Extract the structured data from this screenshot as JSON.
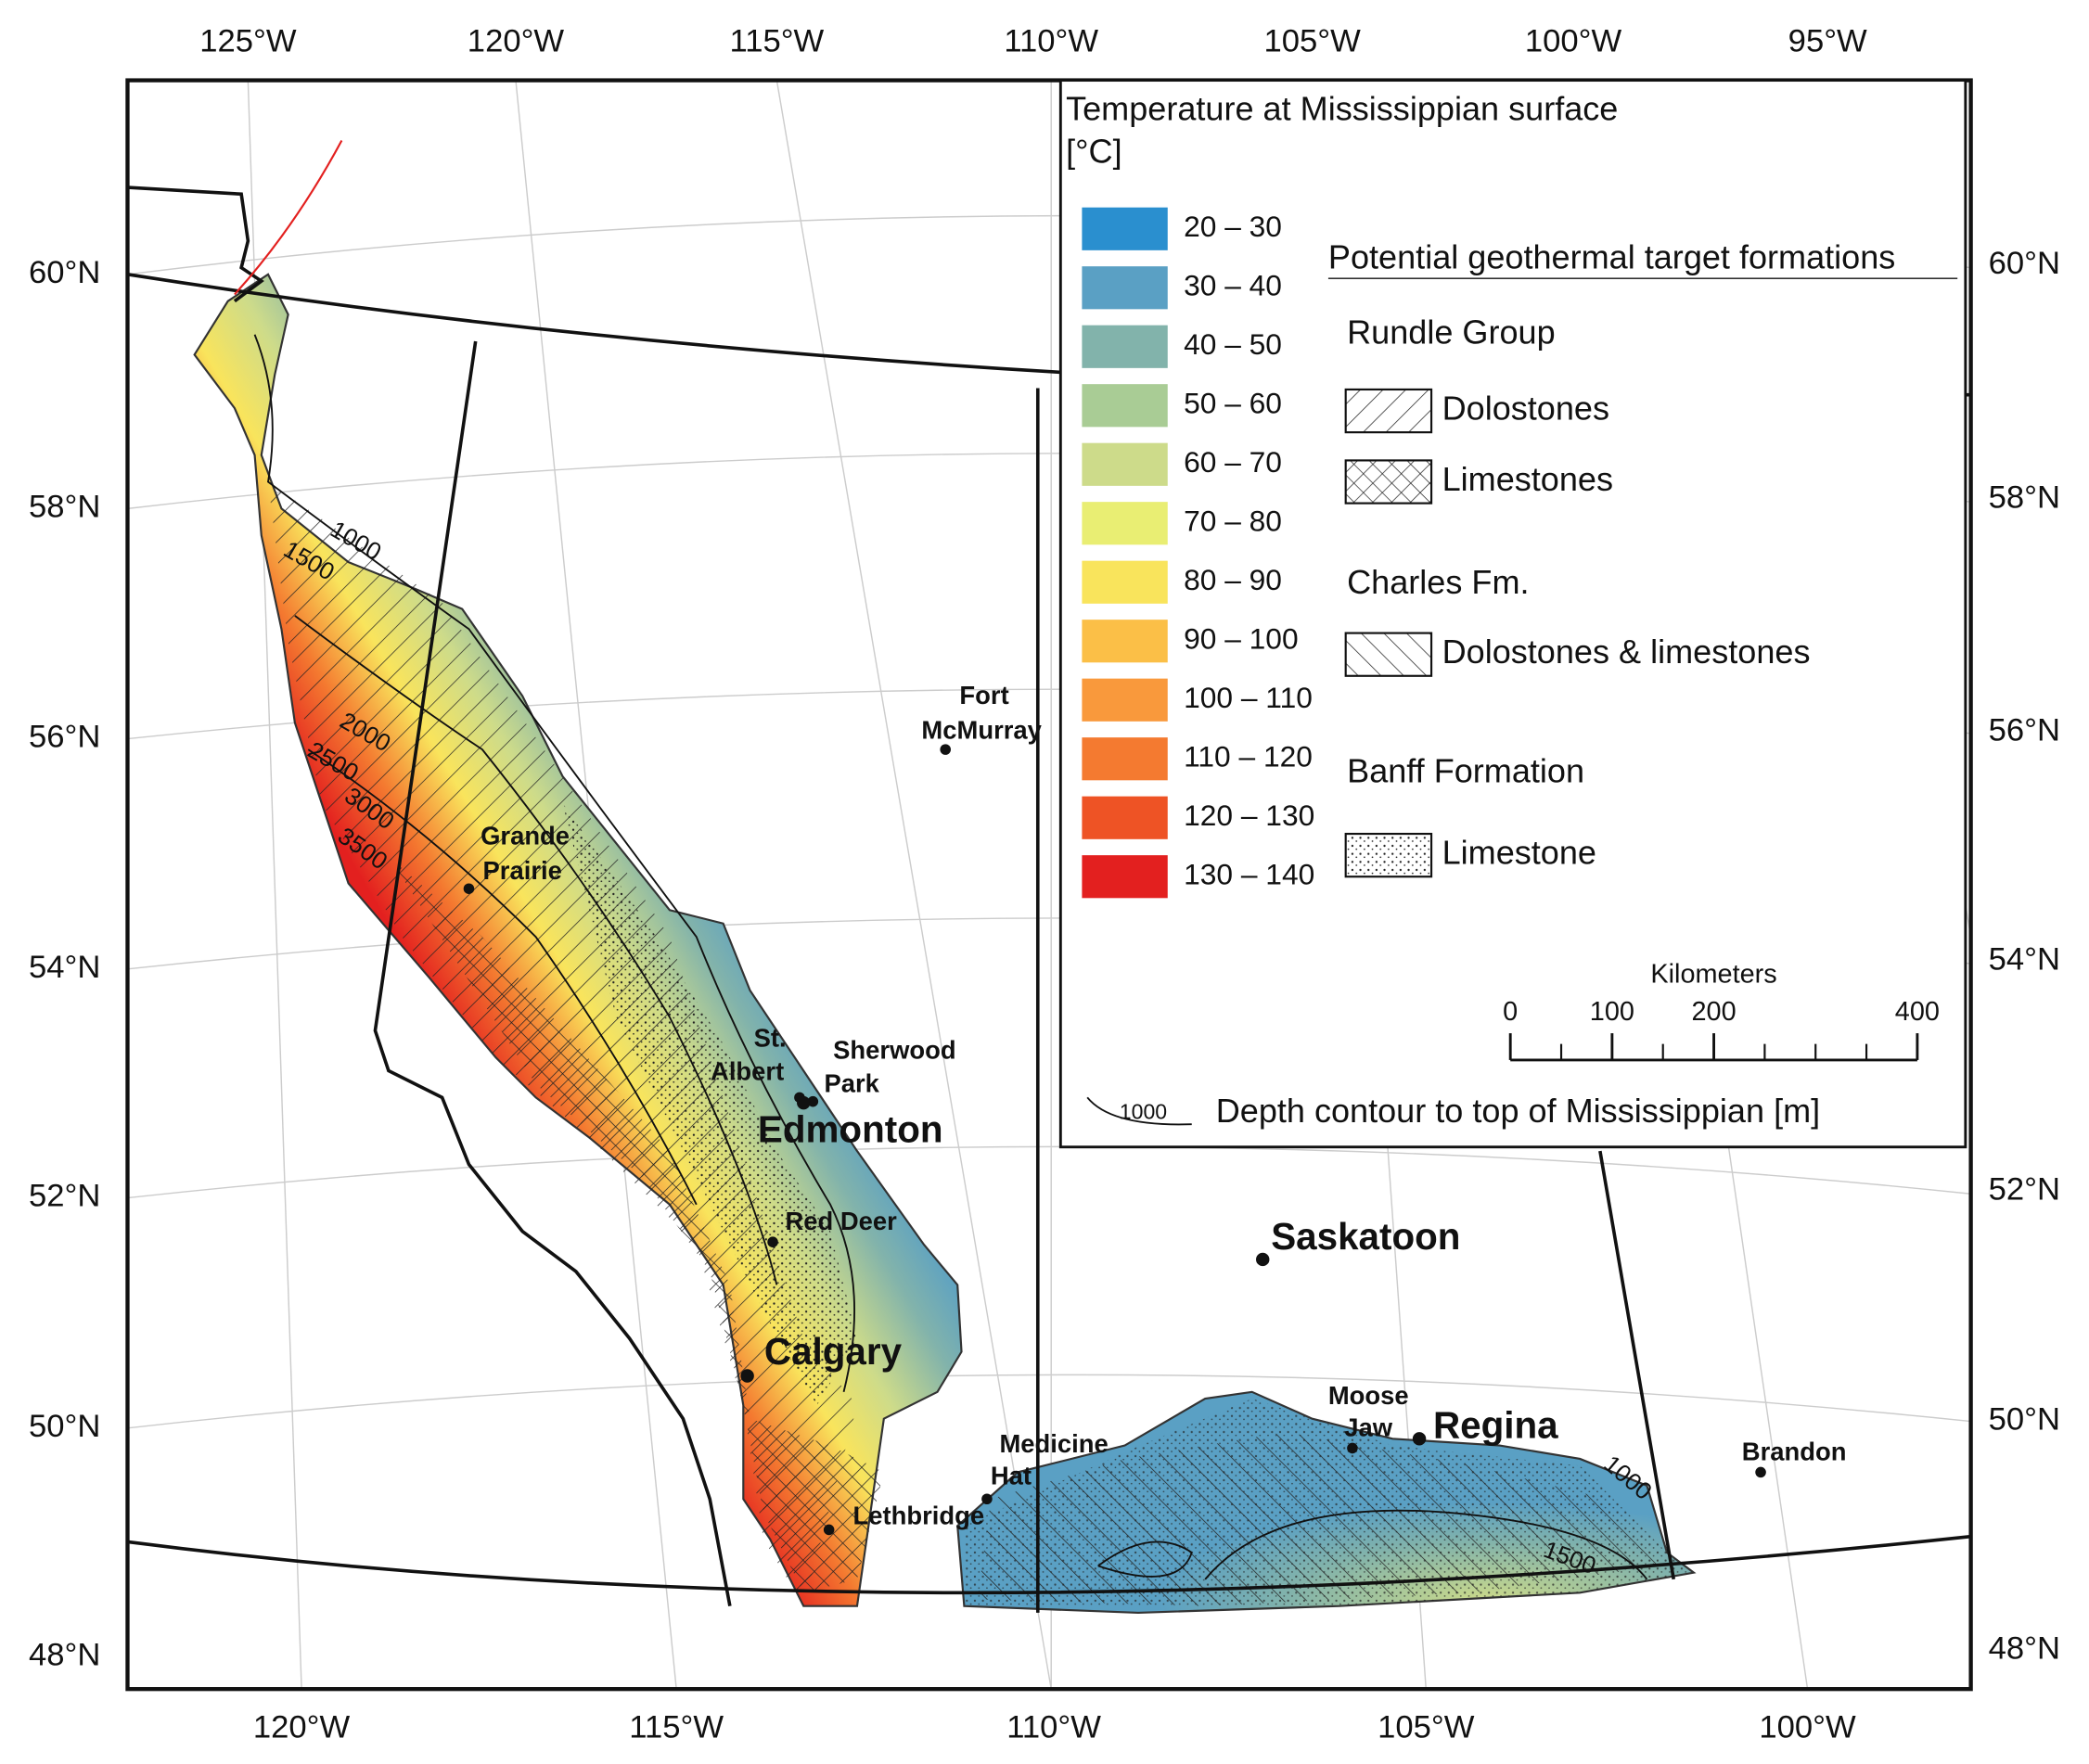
{
  "axes": {
    "top": [
      "125°W",
      "120°W",
      "115°W",
      "110°W",
      "105°W",
      "100°W",
      "95°W"
    ],
    "bottom": [
      "120°W",
      "115°W",
      "110°W",
      "105°W",
      "100°W"
    ],
    "left": [
      "60°N",
      "58°N",
      "56°N",
      "54°N",
      "52°N",
      "50°N",
      "48°N"
    ],
    "right": [
      "60°N",
      "58°N",
      "56°N",
      "54°N",
      "52°N",
      "50°N",
      "48°N"
    ]
  },
  "legend": {
    "title_lines": [
      "Temperature at Mississippian surface",
      "[°C]"
    ],
    "classes": [
      {
        "label": "20 – 30",
        "color": "#2a8fcf"
      },
      {
        "label": "30 – 40",
        "color": "#5aa0c4"
      },
      {
        "label": "40 – 50",
        "color": "#82b3ab"
      },
      {
        "label": "50 – 60",
        "color": "#a9cc95"
      },
      {
        "label": "60 – 70",
        "color": "#cddb8a"
      },
      {
        "label": "70 – 80",
        "color": "#e9ee73"
      },
      {
        "label": "80 – 90",
        "color": "#f9e45c"
      },
      {
        "label": "90 – 100",
        "color": "#fbbf47"
      },
      {
        "label": "100 – 110",
        "color": "#f9993c"
      },
      {
        "label": "110 – 120",
        "color": "#f47a30"
      },
      {
        "label": "120 – 130",
        "color": "#ee5325"
      },
      {
        "label": "130 – 140",
        "color": "#e3201f"
      }
    ],
    "formations_title": "Potential geothermal target formations",
    "groups": [
      {
        "name": "Rundle Group",
        "items": [
          {
            "label": "Dolostones",
            "pattern": "hatch"
          },
          {
            "label": "Limestones",
            "pattern": "cross"
          }
        ]
      },
      {
        "name": "Charles Fm.",
        "items": [
          {
            "label": "Dolostones & limestones",
            "pattern": "back"
          }
        ]
      },
      {
        "name": "Banff Formation",
        "items": [
          {
            "label": "Limestone",
            "pattern": "dots"
          }
        ]
      }
    ],
    "scale": {
      "title": "Kilometers",
      "ticks": [
        0,
        100,
        200,
        400
      ]
    },
    "contour_sample": "1000",
    "contour_label": "Depth contour to top of Mississippian [m]"
  },
  "cities": [
    {
      "lines": [
        "Fort",
        "McMurray"
      ]
    },
    {
      "lines": [
        "Grande",
        "Prairie"
      ]
    },
    {
      "lines": [
        "St.",
        "Albert"
      ]
    },
    {
      "lines": [
        "Sherwood",
        "Park"
      ]
    },
    {
      "lines": [
        "Edmonton"
      ]
    },
    {
      "lines": [
        "Red Deer"
      ]
    },
    {
      "lines": [
        "Calgary"
      ]
    },
    {
      "lines": [
        "Medicine",
        "Hat"
      ]
    },
    {
      "lines": [
        "Lethbridge"
      ]
    },
    {
      "lines": [
        "Saskatoon"
      ]
    },
    {
      "lines": [
        "Moose",
        "Jaw"
      ]
    },
    {
      "lines": [
        "Regina"
      ]
    },
    {
      "lines": [
        "Brandon"
      ]
    }
  ],
  "contour_labels": [
    "1000",
    "1500",
    "2000",
    "2500",
    "3000",
    "3500",
    "1000",
    "1500"
  ]
}
